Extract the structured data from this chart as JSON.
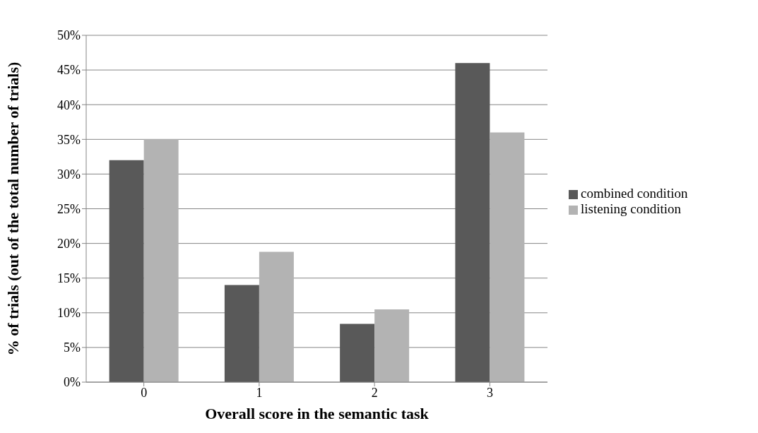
{
  "chart_data": {
    "type": "bar",
    "xlabel": "Overall score in the semantic task",
    "ylabel": "% of trials (out of the total number of trials)",
    "categories": [
      "0",
      "1",
      "2",
      "3"
    ],
    "series": [
      {
        "name": "combined condition",
        "color": "#595959",
        "values": [
          32,
          14,
          8.4,
          46
        ]
      },
      {
        "name": "listening condition",
        "color": "#b3b3b3",
        "values": [
          35,
          18.8,
          10.5,
          36
        ]
      }
    ],
    "ylim": [
      0,
      50
    ],
    "yticks": [
      {
        "value": 0,
        "label": "0%"
      },
      {
        "value": 5,
        "label": "5%"
      },
      {
        "value": 10,
        "label": "10%"
      },
      {
        "value": 15,
        "label": "15%"
      },
      {
        "value": 20,
        "label": "20%"
      },
      {
        "value": 25,
        "label": "25%"
      },
      {
        "value": 30,
        "label": "30%"
      },
      {
        "value": 35,
        "label": "35%"
      },
      {
        "value": 40,
        "label": "40%"
      },
      {
        "value": 45,
        "label": "45%"
      },
      {
        "value": 50,
        "label": "50%"
      }
    ],
    "grid": "y",
    "legend": "right"
  }
}
